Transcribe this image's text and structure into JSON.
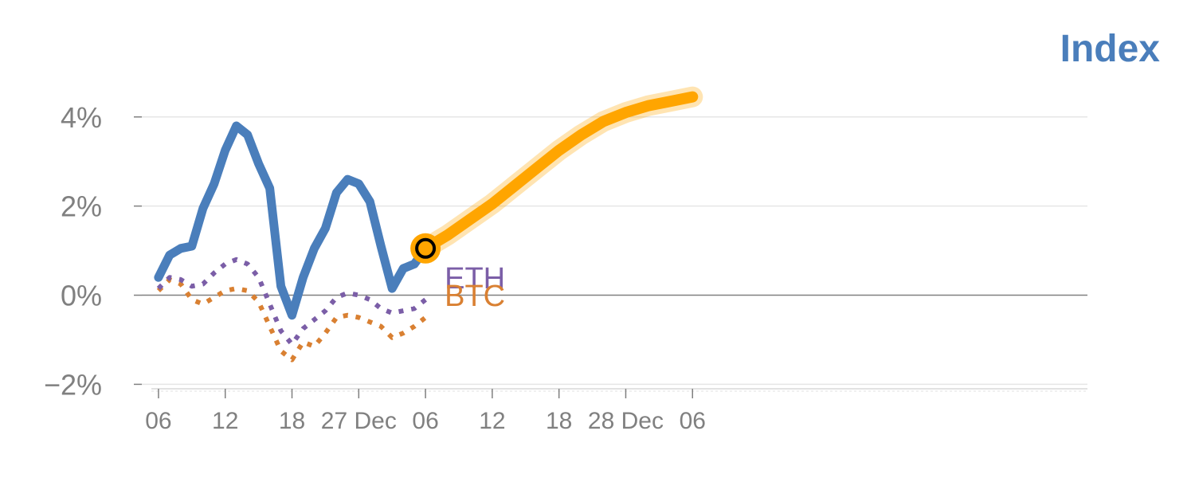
{
  "chart_data": {
    "type": "line",
    "title": "Index",
    "colors": {
      "index": "#4a7ebb",
      "eth": "#7b5ea7",
      "btc": "#d98032",
      "forecast": "#ffa500",
      "axis_text": "#808080",
      "zero_line": "#808080",
      "grid": "#e6e6e6"
    },
    "ylim": [
      -2.1,
      4.3
    ],
    "yticks": [
      {
        "value": -2,
        "label": "−2%"
      },
      {
        "value": 0,
        "label": "0%"
      },
      {
        "value": 2,
        "label": "2%"
      },
      {
        "value": 4,
        "label": "4%"
      }
    ],
    "xlim": [
      -1.5,
      83.5
    ],
    "xticks": [
      {
        "value": 0,
        "label": "06"
      },
      {
        "value": 6,
        "label": "12"
      },
      {
        "value": 12,
        "label": "18"
      },
      {
        "value": 18,
        "label": "27 Dec"
      },
      {
        "value": 24,
        "label": "06"
      },
      {
        "value": 30,
        "label": "12"
      },
      {
        "value": 36,
        "label": "18"
      },
      {
        "value": 42,
        "label": "28 Dec"
      },
      {
        "value": 48,
        "label": "06"
      }
    ],
    "series": [
      {
        "key": "index",
        "x": [
          0,
          1,
          2,
          3,
          4,
          5,
          6,
          7,
          8,
          9,
          10,
          11,
          12,
          13,
          14,
          15,
          16,
          17,
          18,
          19,
          20,
          21,
          22,
          23,
          24
        ],
        "values": [
          0.4,
          0.9,
          1.05,
          1.1,
          1.95,
          2.5,
          3.25,
          3.8,
          3.6,
          2.95,
          2.4,
          0.2,
          -0.45,
          0.4,
          1.05,
          1.5,
          2.3,
          2.6,
          2.5,
          2.1,
          1.1,
          0.15,
          0.6,
          0.7,
          1.05
        ]
      },
      {
        "key": "eth",
        "name": "ETH",
        "x": [
          0,
          1,
          2,
          3,
          4,
          5,
          6,
          7,
          8,
          9,
          10,
          11,
          12,
          13,
          14,
          15,
          16,
          17,
          18,
          19,
          20,
          21,
          22,
          23,
          24
        ],
        "values": [
          0.15,
          0.4,
          0.35,
          0.2,
          0.25,
          0.5,
          0.7,
          0.8,
          0.7,
          0.4,
          -0.2,
          -0.8,
          -1.1,
          -0.75,
          -0.55,
          -0.35,
          -0.05,
          0.05,
          0.0,
          -0.1,
          -0.3,
          -0.4,
          -0.35,
          -0.3,
          -0.1
        ]
      },
      {
        "key": "btc",
        "name": "BTC",
        "x": [
          0,
          1,
          2,
          3,
          4,
          5,
          6,
          7,
          8,
          9,
          10,
          11,
          12,
          13,
          14,
          15,
          16,
          17,
          18,
          19,
          20,
          21,
          22,
          23,
          24
        ],
        "values": [
          0.1,
          0.35,
          0.25,
          -0.1,
          -0.2,
          -0.05,
          0.1,
          0.15,
          0.1,
          -0.15,
          -0.7,
          -1.25,
          -1.45,
          -1.05,
          -1.15,
          -0.85,
          -0.5,
          -0.45,
          -0.5,
          -0.6,
          -0.7,
          -0.95,
          -0.85,
          -0.7,
          -0.5
        ]
      },
      {
        "key": "forecast",
        "x": [
          24,
          26,
          28,
          30,
          32,
          34,
          36,
          38,
          40,
          42,
          44,
          46,
          48
        ],
        "values": [
          1.05,
          1.35,
          1.7,
          2.05,
          2.45,
          2.85,
          3.25,
          3.6,
          3.9,
          4.1,
          4.25,
          4.35,
          4.45
        ]
      }
    ],
    "marker": {
      "x": 24,
      "y": 1.05
    },
    "labels": {
      "eth": "ETH",
      "btc": "BTC"
    }
  }
}
